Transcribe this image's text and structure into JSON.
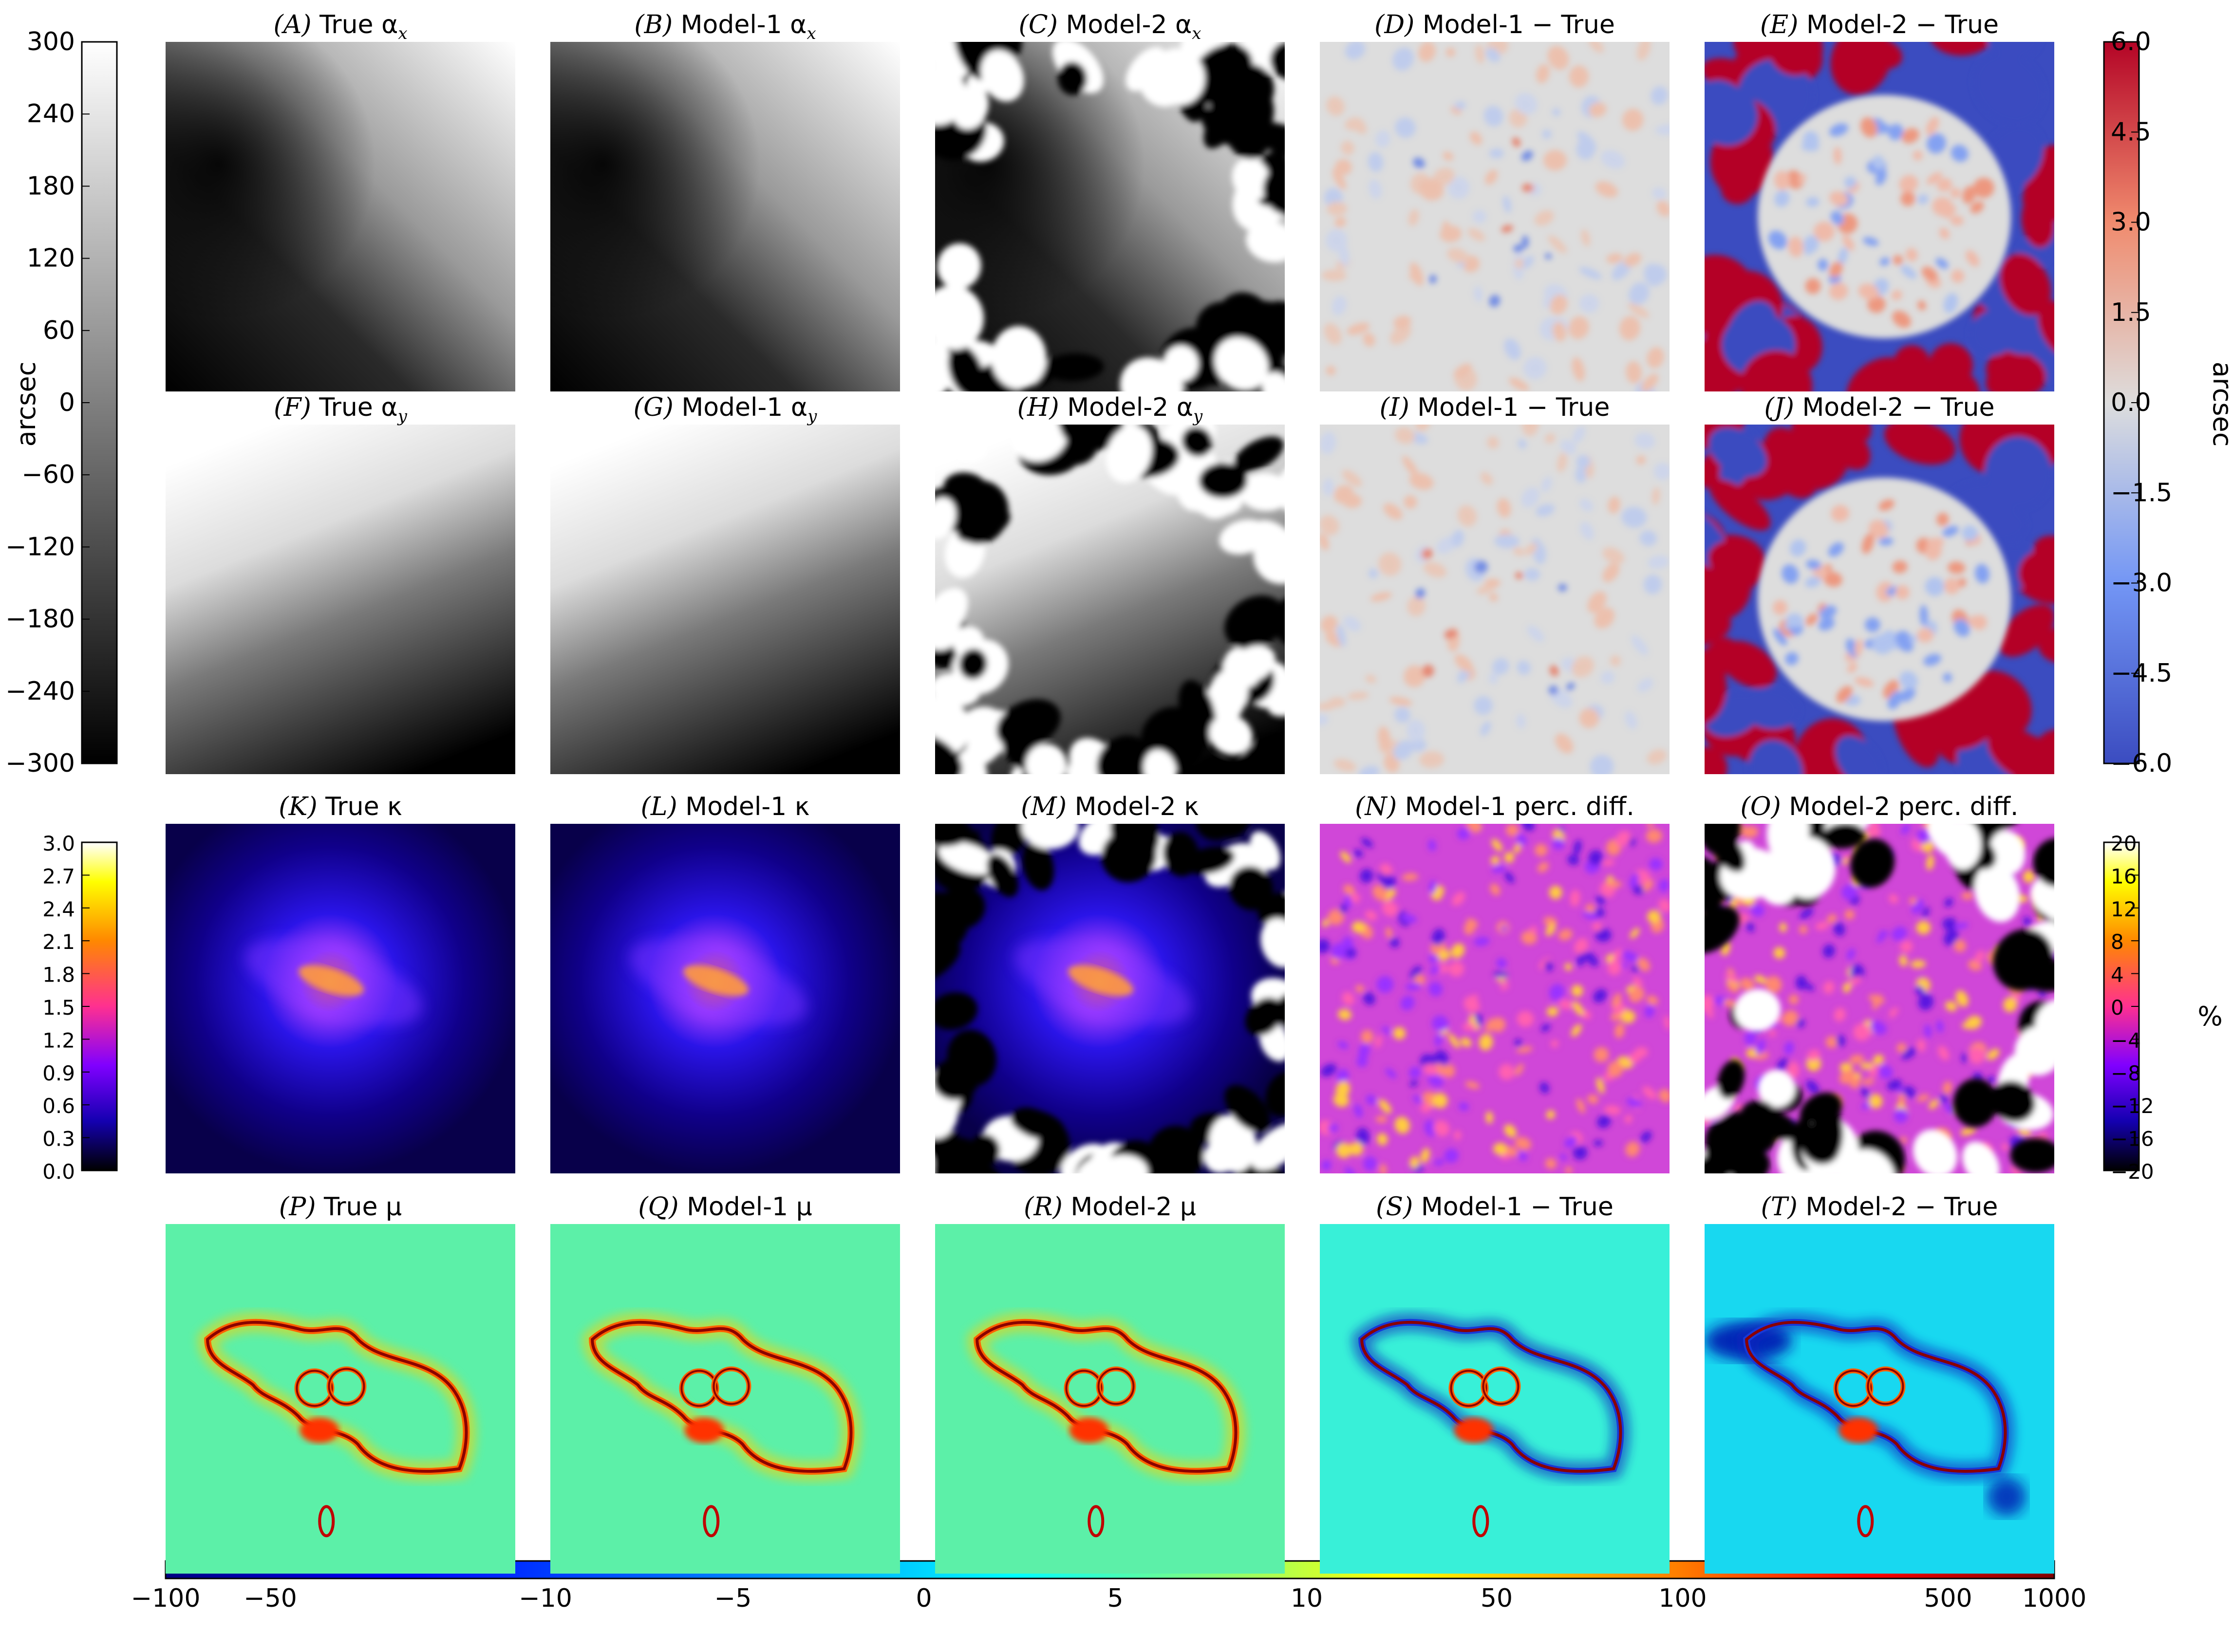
{
  "chart_data": [
    {
      "type": "heatmap",
      "row": "deflection-x",
      "panels": [
        {
          "label": "(A)",
          "title": "True α",
          "sub": "x",
          "field": "alpha_x",
          "pattern": "smooth-gradient"
        },
        {
          "label": "(B)",
          "title": "Model-1 α",
          "sub": "x",
          "field": "alpha_x",
          "pattern": "smooth-gradient"
        },
        {
          "label": "(C)",
          "title": "Model-2 α",
          "sub": "x",
          "field": "alpha_x",
          "pattern": "smooth-center-noisy-border"
        },
        {
          "label": "(D)",
          "title": "Model-1 − True",
          "sub": "",
          "field": "residual",
          "pattern": "small-residual"
        },
        {
          "label": "(E)",
          "title": "Model-2 − True",
          "sub": "",
          "field": "residual",
          "pattern": "saturated-border"
        }
      ]
    },
    {
      "type": "heatmap",
      "row": "deflection-y",
      "panels": [
        {
          "label": "(F)",
          "title": "True α",
          "sub": "y",
          "field": "alpha_y",
          "pattern": "smooth-gradient"
        },
        {
          "label": "(G)",
          "title": "Model-1 α",
          "sub": "y",
          "field": "alpha_y",
          "pattern": "smooth-gradient"
        },
        {
          "label": "(H)",
          "title": "Model-2 α",
          "sub": "y",
          "field": "alpha_y",
          "pattern": "smooth-center-noisy-border"
        },
        {
          "label": "(I)",
          "title": "Model-1 − True",
          "sub": "",
          "field": "residual",
          "pattern": "small-residual"
        },
        {
          "label": "(J)",
          "title": "Model-2 − True",
          "sub": "",
          "field": "residual",
          "pattern": "saturated-border"
        }
      ]
    },
    {
      "type": "heatmap",
      "row": "convergence",
      "panels": [
        {
          "label": "(K)",
          "title": "True κ",
          "sub": "",
          "field": "kappa",
          "pattern": "central-peak"
        },
        {
          "label": "(L)",
          "title": "Model-1 κ",
          "sub": "",
          "field": "kappa",
          "pattern": "central-peak"
        },
        {
          "label": "(M)",
          "title": "Model-2 κ",
          "sub": "",
          "field": "kappa",
          "pattern": "central-peak-noisy-border"
        },
        {
          "label": "(N)",
          "title": "Model-1 perc. diff.",
          "sub": "",
          "field": "percent",
          "pattern": "mottled"
        },
        {
          "label": "(O)",
          "title": "Model-2 perc. diff.",
          "sub": "",
          "field": "percent",
          "pattern": "mottled-noisy-border"
        }
      ]
    },
    {
      "type": "heatmap",
      "row": "magnification",
      "panels": [
        {
          "label": "(P)",
          "title": "True μ",
          "sub": "",
          "field": "mu",
          "pattern": "critical-curve"
        },
        {
          "label": "(Q)",
          "title": "Model-1 μ",
          "sub": "",
          "field": "mu",
          "pattern": "critical-curve"
        },
        {
          "label": "(R)",
          "title": "Model-2 μ",
          "sub": "",
          "field": "mu",
          "pattern": "critical-curve"
        },
        {
          "label": "(S)",
          "title": "Model-1 − True",
          "sub": "",
          "field": "mu-residual",
          "pattern": "critical-curve-residual"
        },
        {
          "label": "(T)",
          "title": "Model-2 − True",
          "sub": "",
          "field": "mu-residual",
          "pattern": "critical-curve-residual"
        }
      ]
    }
  ],
  "colorbars": {
    "alpha": {
      "label": "arcsec",
      "range": [
        -300,
        300
      ],
      "ticks": [
        "300",
        "240",
        "180",
        "120",
        "60",
        "0",
        "−60",
        "−120",
        "−180",
        "−240",
        "−300"
      ],
      "colors": [
        "#000000",
        "#ffffff"
      ]
    },
    "residual": {
      "label": "arcsec",
      "range": [
        -6,
        6
      ],
      "ticks": [
        "6.0",
        "4.5",
        "3.0",
        "1.5",
        "0.0",
        "−1.5",
        "−3.0",
        "−4.5",
        "−6.0"
      ],
      "colors": [
        "#3b4cc0",
        "#7396f5",
        "#dddddd",
        "#f08b6e",
        "#b40426"
      ]
    },
    "kappa": {
      "label": "",
      "range": [
        0,
        3
      ],
      "ticks": [
        "3.0",
        "2.7",
        "2.4",
        "2.1",
        "1.8",
        "1.5",
        "1.2",
        "0.9",
        "0.6",
        "0.3",
        "0.0"
      ],
      "colors": [
        "#000000",
        "#1400b0",
        "#8000ff",
        "#ff3090",
        "#ff8800",
        "#ffff00",
        "#ffffff"
      ]
    },
    "percent": {
      "label": "%",
      "range": [
        -20,
        20
      ],
      "ticks": [
        "20",
        "16",
        "12",
        "8",
        "4",
        "0",
        "−4",
        "−8",
        "−12",
        "−16",
        "−20"
      ],
      "colors": [
        "#000000",
        "#1400b0",
        "#8000ff",
        "#ff3090",
        "#ff8800",
        "#ffff00",
        "#ffffff"
      ]
    },
    "mu": {
      "label": "",
      "ticks": [
        "−100",
        "−50",
        "−10",
        "−5",
        "0",
        "5",
        "10",
        "50",
        "100",
        "500",
        "1000"
      ],
      "colors": [
        "#00007f",
        "#0000ff",
        "#007fff",
        "#00ffff",
        "#7fff7f",
        "#ffff00",
        "#ff7f00",
        "#ff0000",
        "#7f0000"
      ]
    }
  }
}
